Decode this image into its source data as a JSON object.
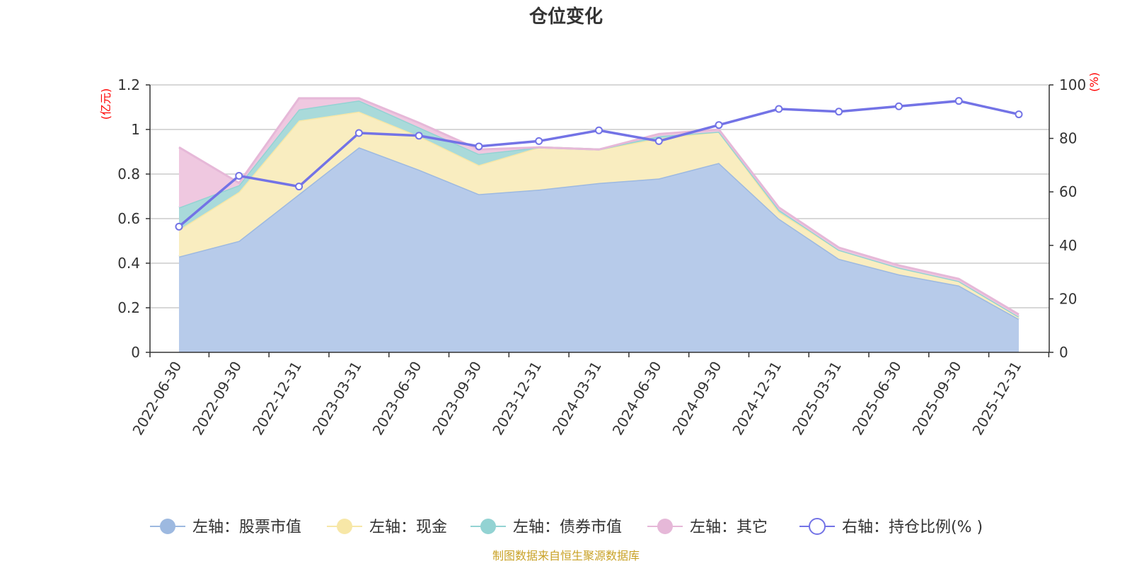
{
  "chart_data": {
    "type": "area",
    "title": "仓位变化",
    "left_unit": "(亿元)",
    "right_unit": "(%)",
    "categories": [
      "2022-06-30",
      "2022-09-30",
      "2022-12-31",
      "2023-03-31",
      "2023-06-30",
      "2023-09-30",
      "2023-12-31",
      "2024-03-31",
      "2024-06-30",
      "2024-09-30",
      "2024-12-31",
      "2025-03-31",
      "2025-06-30",
      "2025-09-30",
      "2025-12-31"
    ],
    "y_left": {
      "min": 0,
      "max": 1.2,
      "ticks": [
        "0",
        "0.2",
        "0.4",
        "0.6",
        "0.8",
        "1",
        "1.2"
      ]
    },
    "y_right": {
      "min": 0,
      "max": 100,
      "ticks": [
        "0",
        "20",
        "40",
        "60",
        "80",
        "100"
      ]
    },
    "series": [
      {
        "name": "左轴：股票市值",
        "axis": "left",
        "kind": "stacked-area",
        "color": "#9db9e0",
        "fill": "#b7cbea",
        "values": [
          0.43,
          0.5,
          0.71,
          0.92,
          0.82,
          0.71,
          0.73,
          0.76,
          0.78,
          0.85,
          0.6,
          0.42,
          0.35,
          0.3,
          0.15
        ]
      },
      {
        "name": "左轴：现金",
        "axis": "left",
        "kind": "stacked-area",
        "color": "#f7e7a7",
        "fill": "#f9edc0",
        "values": [
          0.12,
          0.22,
          0.33,
          0.16,
          0.15,
          0.13,
          0.19,
          0.15,
          0.18,
          0.14,
          0.03,
          0.04,
          0.03,
          0.02,
          0.01
        ]
      },
      {
        "name": "左轴：债券市值",
        "axis": "left",
        "kind": "stacked-area",
        "color": "#93d3d3",
        "fill": "#a9dada",
        "values": [
          0.1,
          0.03,
          0.05,
          0.05,
          0.04,
          0.05,
          0.0,
          0.0,
          0.01,
          0.0,
          0.01,
          0.0,
          0.0,
          0.0,
          0.0
        ]
      },
      {
        "name": "左轴：其它",
        "axis": "left",
        "kind": "stacked-area",
        "color": "#e6b8d8",
        "fill": "#efc8e0",
        "values": [
          0.27,
          0.01,
          0.05,
          0.01,
          0.02,
          0.02,
          0.0,
          0.0,
          0.01,
          0.01,
          0.01,
          0.01,
          0.01,
          0.01,
          0.01
        ]
      },
      {
        "name": "右轴：持仓比例(% )",
        "axis": "right",
        "kind": "line",
        "color": "#7373e6",
        "values": [
          47,
          66,
          62,
          82,
          81,
          77,
          79,
          83,
          79,
          85,
          91,
          90,
          92,
          94,
          89
        ]
      }
    ],
    "legend_position": "bottom",
    "grid": true
  },
  "source_note": "制图数据来自恒生聚源数据库"
}
